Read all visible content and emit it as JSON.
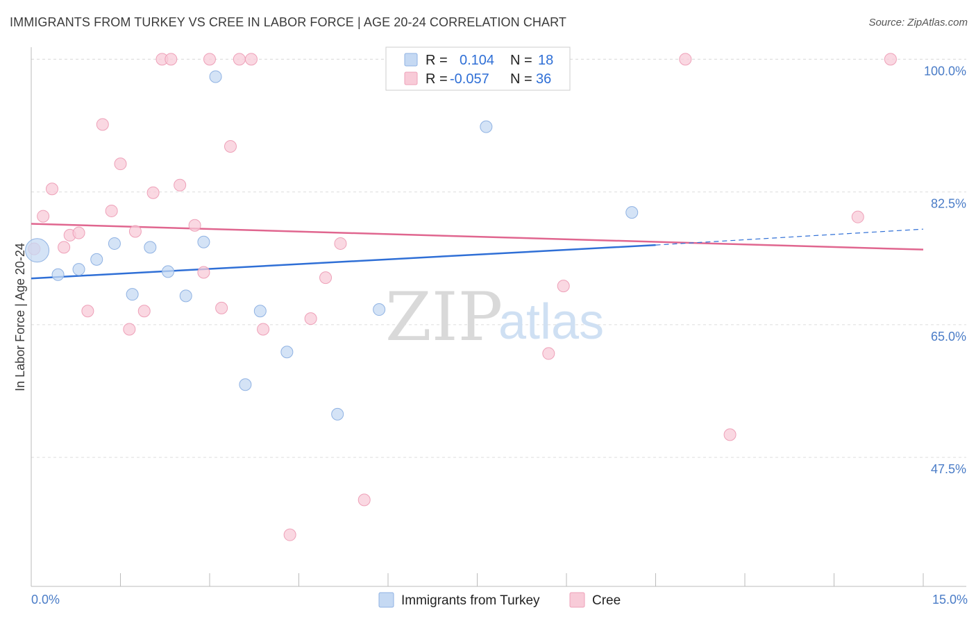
{
  "title": "IMMIGRANTS FROM TURKEY VS CREE IN LABOR FORCE | AGE 20-24 CORRELATION CHART",
  "source": "Source: ZipAtlas.com",
  "watermark": {
    "zip": "ZIP",
    "atlas": "atlas"
  },
  "legend": {
    "r_label": "R =",
    "n_label": "N =",
    "rows": [
      {
        "series": "Immigrants from Turkey",
        "r": "0.104",
        "n": "18"
      },
      {
        "series": "Cree",
        "r": "-0.057",
        "n": "36"
      }
    ]
  },
  "colors": {
    "turkey_fill": "#c5d9f3",
    "turkey_stroke": "#8fb2e3",
    "turkey_line": "#2f6fd6",
    "cree_fill": "#f8cbd8",
    "cree_stroke": "#eea0b8",
    "cree_line": "#e0668f",
    "grid": "#dddddd",
    "axis": "#bbbbbb",
    "tick_label": "#4a7cc7"
  },
  "chart_data": {
    "type": "scatter",
    "title": "IMMIGRANTS FROM TURKEY VS CREE IN LABOR FORCE | AGE 20-24 CORRELATION CHART",
    "xlabel": "",
    "ylabel": "In Labor Force | Age 20-24",
    "xlim": [
      0,
      15
    ],
    "ylim": [
      30.5,
      102.5
    ],
    "x_tick_labels": [
      "0.0%",
      "15.0%"
    ],
    "y_ticks": [
      47.5,
      65.0,
      82.5,
      100.0
    ],
    "y_tick_labels": [
      "47.5%",
      "65.0%",
      "82.5%",
      "100.0%"
    ],
    "grid": true,
    "legend_position": "top-center",
    "series": [
      {
        "name": "Immigrants from Turkey",
        "r": 0.104,
        "n": 18,
        "trend": {
          "x0": 0.0,
          "y0": 71.1,
          "x1": 10.5,
          "y1": 75.5,
          "x_dashed_end": 15.0,
          "y_dashed_end": 77.6
        },
        "points": [
          {
            "x": 0.1,
            "y": 74.8,
            "size": "large"
          },
          {
            "x": 0.45,
            "y": 71.6
          },
          {
            "x": 0.8,
            "y": 72.3
          },
          {
            "x": 1.1,
            "y": 73.6
          },
          {
            "x": 1.4,
            "y": 75.7
          },
          {
            "x": 1.7,
            "y": 69.0
          },
          {
            "x": 2.0,
            "y": 75.2
          },
          {
            "x": 2.3,
            "y": 72.0
          },
          {
            "x": 2.6,
            "y": 68.8
          },
          {
            "x": 2.9,
            "y": 75.9
          },
          {
            "x": 3.1,
            "y": 97.7
          },
          {
            "x": 3.6,
            "y": 57.1
          },
          {
            "x": 3.85,
            "y": 66.8
          },
          {
            "x": 4.3,
            "y": 61.4
          },
          {
            "x": 5.15,
            "y": 53.2
          },
          {
            "x": 5.85,
            "y": 67.0
          },
          {
            "x": 7.65,
            "y": 91.1
          },
          {
            "x": 10.1,
            "y": 79.8
          }
        ]
      },
      {
        "name": "Cree",
        "r": -0.057,
        "n": 36,
        "trend": {
          "x0": 0.0,
          "y0": 78.3,
          "x1": 15.0,
          "y1": 74.9
        },
        "points": [
          {
            "x": 0.05,
            "y": 75.0
          },
          {
            "x": 0.2,
            "y": 79.3
          },
          {
            "x": 0.35,
            "y": 82.9
          },
          {
            "x": 0.55,
            "y": 75.2
          },
          {
            "x": 0.65,
            "y": 76.8
          },
          {
            "x": 0.8,
            "y": 77.1
          },
          {
            "x": 0.95,
            "y": 66.8
          },
          {
            "x": 1.2,
            "y": 91.4
          },
          {
            "x": 1.35,
            "y": 80.0
          },
          {
            "x": 1.5,
            "y": 86.2
          },
          {
            "x": 1.65,
            "y": 64.4
          },
          {
            "x": 1.75,
            "y": 77.3
          },
          {
            "x": 1.9,
            "y": 66.8
          },
          {
            "x": 2.05,
            "y": 82.4
          },
          {
            "x": 2.2,
            "y": 100.0
          },
          {
            "x": 2.35,
            "y": 100.0
          },
          {
            "x": 2.5,
            "y": 83.4
          },
          {
            "x": 2.75,
            "y": 78.1
          },
          {
            "x": 2.9,
            "y": 71.9
          },
          {
            "x": 3.0,
            "y": 100.0
          },
          {
            "x": 3.2,
            "y": 67.2
          },
          {
            "x": 3.35,
            "y": 88.5
          },
          {
            "x": 3.5,
            "y": 100.0
          },
          {
            "x": 3.7,
            "y": 100.0
          },
          {
            "x": 3.9,
            "y": 64.4
          },
          {
            "x": 4.35,
            "y": 37.3
          },
          {
            "x": 4.7,
            "y": 65.8
          },
          {
            "x": 4.95,
            "y": 71.2
          },
          {
            "x": 5.2,
            "y": 75.7
          },
          {
            "x": 5.6,
            "y": 41.9
          },
          {
            "x": 8.7,
            "y": 61.2
          },
          {
            "x": 8.95,
            "y": 70.1
          },
          {
            "x": 11.0,
            "y": 100.0
          },
          {
            "x": 11.75,
            "y": 50.5
          },
          {
            "x": 13.9,
            "y": 79.2
          },
          {
            "x": 14.45,
            "y": 100.0
          }
        ]
      }
    ]
  }
}
